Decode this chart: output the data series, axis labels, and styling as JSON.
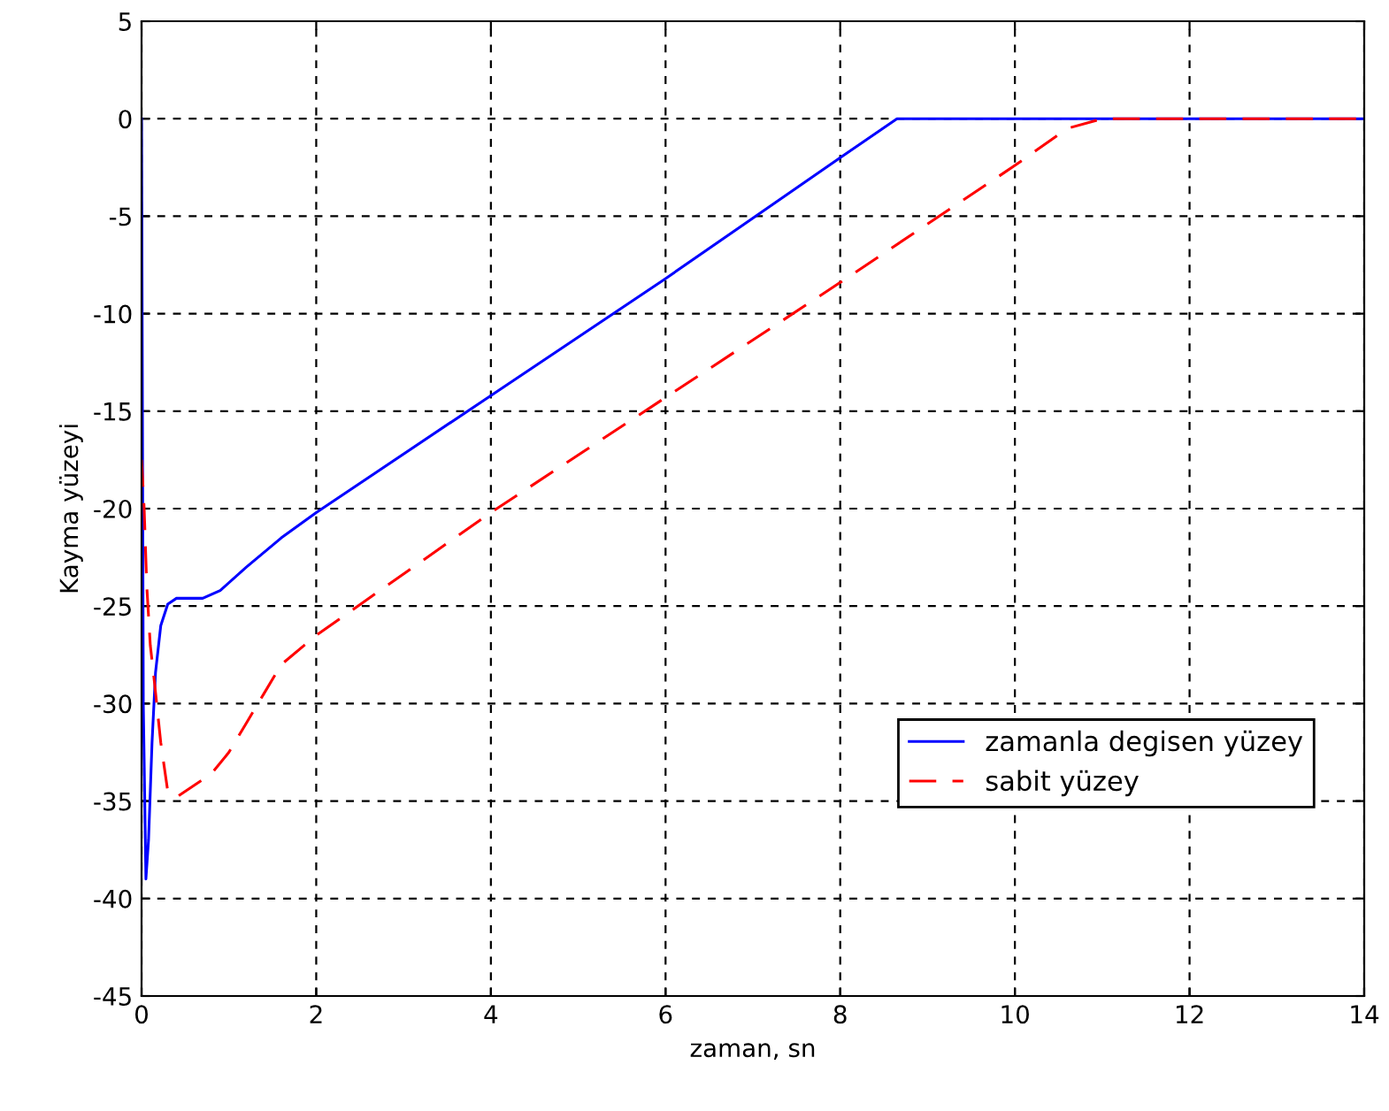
{
  "chart_data": {
    "type": "line",
    "xlabel": "zaman, sn",
    "ylabel": "Kayma yüzeyi",
    "xlim": [
      0,
      14
    ],
    "xticks": [
      0,
      2,
      4,
      6,
      8,
      10,
      12,
      14
    ],
    "ylim": [
      -45,
      5
    ],
    "yticks": [
      -45,
      -40,
      -35,
      -30,
      -25,
      -20,
      -15,
      -10,
      -5,
      0,
      5
    ],
    "grid": true,
    "legend": "bottom right",
    "series": [
      {
        "name": "zamanla degisen yüzey",
        "color": "#0000ff",
        "line_style": "solid",
        "x": [
          0,
          0.02,
          0.05,
          0.08,
          0.12,
          0.16,
          0.22,
          0.3,
          0.4,
          0.7,
          0.9,
          1.2,
          1.6,
          2,
          4,
          6,
          8,
          8.65,
          10,
          12,
          14
        ],
        "values": [
          0,
          -30,
          -39,
          -37,
          -32,
          -28.4,
          -26,
          -24.9,
          -24.6,
          -24.6,
          -24.2,
          -23,
          -21.5,
          -20.2,
          -14.2,
          -8.2,
          -2,
          0,
          0,
          0,
          0
        ]
      },
      {
        "name": "sabit yüzey",
        "color": "#ff0000",
        "line_style": "dashed",
        "x": [
          0,
          0.03,
          0.06,
          0.1,
          0.15,
          0.22,
          0.3,
          0.4,
          0.6,
          0.8,
          1,
          1.2,
          1.4,
          1.6,
          2,
          4,
          6,
          8,
          10,
          10.6,
          11,
          12,
          14
        ],
        "values": [
          -17.5,
          -20,
          -24,
          -27,
          -29,
          -32,
          -34.5,
          -34.8,
          -34.2,
          -33.6,
          -32.5,
          -31,
          -29.5,
          -28,
          -26.5,
          -20.2,
          -14.3,
          -8.4,
          -2.4,
          -0.5,
          0,
          0,
          0
        ]
      }
    ]
  }
}
